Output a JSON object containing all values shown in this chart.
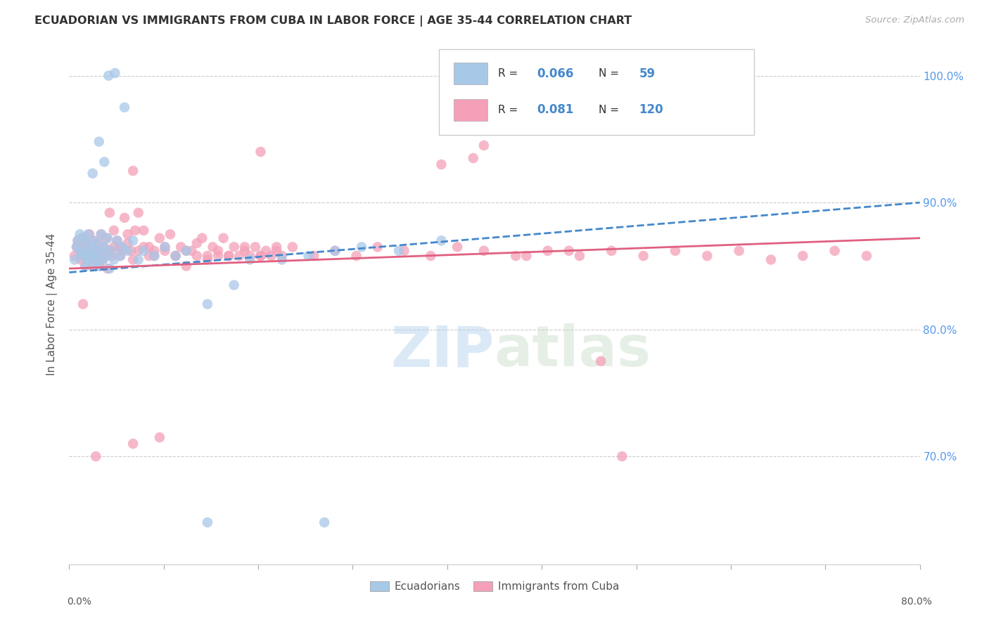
{
  "title": "ECUADORIAN VS IMMIGRANTS FROM CUBA IN LABOR FORCE | AGE 35-44 CORRELATION CHART",
  "source": "Source: ZipAtlas.com",
  "ylabel": "In Labor Force | Age 35-44",
  "xlim": [
    0.0,
    0.8
  ],
  "ylim": [
    0.615,
    1.025
  ],
  "ytick_labels": [
    "70.0%",
    "80.0%",
    "90.0%",
    "100.0%"
  ],
  "ytick_values": [
    0.7,
    0.8,
    0.9,
    1.0
  ],
  "xtick_labels": [
    "0.0%",
    "",
    "",
    "",
    "",
    "",
    "",
    "",
    "",
    "80.0%"
  ],
  "blue_R": "0.066",
  "blue_N": "59",
  "pink_R": "0.081",
  "pink_N": "120",
  "blue_line_x": [
    0.0,
    0.8
  ],
  "blue_line_y": [
    0.845,
    0.9
  ],
  "pink_line_x": [
    0.0,
    0.8
  ],
  "pink_line_y": [
    0.848,
    0.872
  ],
  "watermark_zip": "ZIP",
  "watermark_atlas": "atlas",
  "bg_color": "#ffffff",
  "scatter_blue_color": "#a8c8e8",
  "scatter_pink_color": "#f4a0b8",
  "line_blue_color": "#4488cc",
  "line_pink_color": "#e06080",
  "grid_color": "#cccccc",
  "right_label_color": "#5599ee",
  "title_color": "#333333",
  "blue_x": [
    0.005,
    0.007,
    0.008,
    0.01,
    0.01,
    0.012,
    0.013,
    0.014,
    0.015,
    0.016,
    0.017,
    0.018,
    0.018,
    0.02,
    0.02,
    0.021,
    0.022,
    0.023,
    0.025,
    0.026,
    0.027,
    0.028,
    0.03,
    0.03,
    0.032,
    0.033,
    0.035,
    0.036,
    0.038,
    0.04,
    0.042,
    0.045,
    0.048,
    0.05,
    0.055,
    0.06,
    0.065,
    0.07,
    0.08,
    0.09,
    0.1,
    0.11,
    0.13,
    0.155,
    0.17,
    0.2,
    0.225,
    0.25,
    0.275,
    0.31,
    0.35,
    0.037,
    0.043,
    0.052,
    0.13,
    0.24,
    0.022,
    0.028,
    0.033
  ],
  "blue_y": [
    0.855,
    0.865,
    0.87,
    0.862,
    0.875,
    0.858,
    0.872,
    0.86,
    0.85,
    0.868,
    0.855,
    0.862,
    0.875,
    0.858,
    0.865,
    0.852,
    0.87,
    0.858,
    0.862,
    0.855,
    0.868,
    0.85,
    0.862,
    0.875,
    0.855,
    0.865,
    0.858,
    0.872,
    0.848,
    0.862,
    0.855,
    0.87,
    0.858,
    0.865,
    0.862,
    0.87,
    0.855,
    0.862,
    0.858,
    0.865,
    0.858,
    0.862,
    0.82,
    0.835,
    0.855,
    0.855,
    0.858,
    0.862,
    0.865,
    0.862,
    0.87,
    1.0,
    1.002,
    0.975,
    0.648,
    0.648,
    0.923,
    0.948,
    0.932
  ],
  "pink_x": [
    0.005,
    0.007,
    0.008,
    0.01,
    0.011,
    0.012,
    0.013,
    0.014,
    0.015,
    0.016,
    0.017,
    0.018,
    0.019,
    0.02,
    0.021,
    0.022,
    0.023,
    0.024,
    0.025,
    0.026,
    0.027,
    0.028,
    0.029,
    0.03,
    0.031,
    0.032,
    0.033,
    0.035,
    0.036,
    0.038,
    0.04,
    0.042,
    0.045,
    0.048,
    0.05,
    0.055,
    0.06,
    0.065,
    0.07,
    0.075,
    0.08,
    0.09,
    0.1,
    0.11,
    0.12,
    0.13,
    0.14,
    0.15,
    0.165,
    0.18,
    0.195,
    0.21,
    0.23,
    0.25,
    0.27,
    0.29,
    0.315,
    0.34,
    0.365,
    0.39,
    0.42,
    0.45,
    0.48,
    0.51,
    0.54,
    0.57,
    0.6,
    0.63,
    0.66,
    0.69,
    0.72,
    0.75,
    0.013,
    0.025,
    0.06,
    0.38,
    0.5,
    0.52,
    0.35,
    0.39,
    0.43,
    0.47,
    0.06,
    0.085,
    0.18,
    0.038,
    0.042,
    0.048,
    0.052,
    0.055,
    0.058,
    0.062,
    0.065,
    0.07,
    0.075,
    0.08,
    0.085,
    0.09,
    0.095,
    0.1,
    0.105,
    0.11,
    0.115,
    0.12,
    0.125,
    0.13,
    0.135,
    0.14,
    0.145,
    0.15,
    0.155,
    0.16,
    0.165,
    0.17,
    0.175,
    0.18,
    0.185,
    0.19,
    0.195,
    0.2
  ],
  "pink_y": [
    0.858,
    0.865,
    0.87,
    0.862,
    0.855,
    0.872,
    0.858,
    0.865,
    0.85,
    0.868,
    0.858,
    0.862,
    0.875,
    0.858,
    0.865,
    0.85,
    0.87,
    0.858,
    0.862,
    0.855,
    0.868,
    0.85,
    0.862,
    0.875,
    0.855,
    0.865,
    0.858,
    0.872,
    0.848,
    0.862,
    0.858,
    0.865,
    0.87,
    0.858,
    0.862,
    0.868,
    0.855,
    0.862,
    0.865,
    0.858,
    0.862,
    0.865,
    0.858,
    0.862,
    0.868,
    0.855,
    0.862,
    0.858,
    0.865,
    0.858,
    0.862,
    0.865,
    0.858,
    0.862,
    0.858,
    0.865,
    0.862,
    0.858,
    0.865,
    0.862,
    0.858,
    0.862,
    0.858,
    0.862,
    0.858,
    0.862,
    0.858,
    0.862,
    0.855,
    0.858,
    0.862,
    0.858,
    0.82,
    0.7,
    0.71,
    0.935,
    0.775,
    0.7,
    0.93,
    0.945,
    0.858,
    0.862,
    0.925,
    0.715,
    0.94,
    0.892,
    0.878,
    0.865,
    0.888,
    0.875,
    0.862,
    0.878,
    0.892,
    0.878,
    0.865,
    0.858,
    0.872,
    0.862,
    0.875,
    0.858,
    0.865,
    0.85,
    0.862,
    0.858,
    0.872,
    0.858,
    0.865,
    0.858,
    0.872,
    0.858,
    0.865,
    0.858,
    0.862,
    0.858,
    0.865,
    0.858,
    0.862,
    0.858,
    0.865,
    0.858
  ]
}
